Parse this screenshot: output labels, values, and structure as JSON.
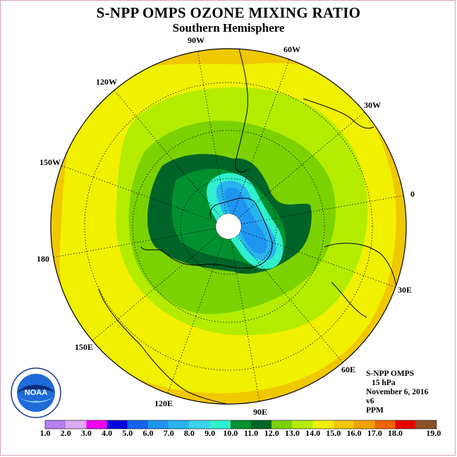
{
  "title": "S-NPP OMPS OZONE MIXING RATIO",
  "subtitle": "Southern Hemisphere",
  "info": {
    "instrument": "S-NPP OMPS",
    "pressure": "15 hPa",
    "date": "November 6, 2016",
    "version": "v6",
    "units": "PPM"
  },
  "longitude_labels": [
    {
      "text": "90W"
    },
    {
      "text": "60W"
    },
    {
      "text": "30W"
    },
    {
      "text": "0"
    },
    {
      "text": "30E"
    },
    {
      "text": "60E"
    },
    {
      "text": "90E"
    },
    {
      "text": "120E"
    },
    {
      "text": "150E"
    },
    {
      "text": "180"
    },
    {
      "text": "150W"
    },
    {
      "text": "120W"
    }
  ],
  "colorbar": {
    "ticks": [
      "1.0",
      "2.0",
      "3.0",
      "4.0",
      "5.0",
      "6.0",
      "7.0",
      "8.0",
      "9.0",
      "10.0",
      "11.0",
      "12.0",
      "13.0",
      "14.0",
      "15.0",
      "16.0",
      "17.0",
      "18.0",
      "19.0"
    ],
    "colors": [
      "#b77ff0",
      "#dcaaf2",
      "#f200f2",
      "#0000e0",
      "#1464f0",
      "#1e96f0",
      "#28b4ee",
      "#3cd2ec",
      "#30f0d0",
      "#009030",
      "#006428",
      "#7cd200",
      "#b4ec00",
      "#f0f000",
      "#f0c800",
      "#f0a000",
      "#f06400",
      "#e60000",
      "#8c5028"
    ]
  },
  "logo": {
    "text": "NOAA",
    "ring_text": "NATIONAL OCEANIC AND ATMOSPHERIC ADMINISTRATION · U.S. DEPARTMENT OF COMMERCE"
  },
  "map_colors": {
    "outer": "#f0c800",
    "yellow": "#f0f000",
    "yellowgreen": "#b4ec00",
    "green": "#7cd200",
    "mid_green": "#009030",
    "dark_green": "#006428",
    "cyan": "#30f0d0",
    "light_blue": "#28b4ee",
    "blue": "#1e96f0"
  }
}
